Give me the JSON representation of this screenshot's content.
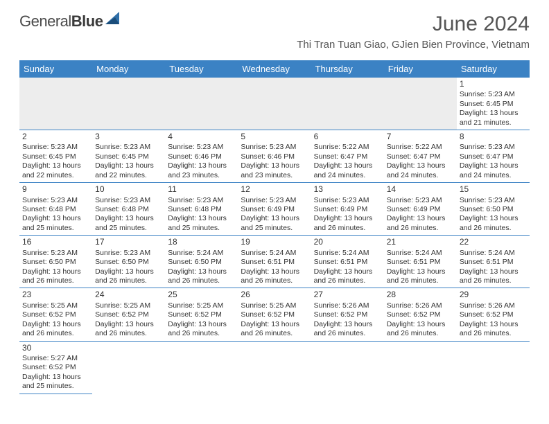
{
  "logo": {
    "word1": "General",
    "word2": "Blue"
  },
  "title": "June 2024",
  "location": "Thi Tran Tuan Giao, GJien Bien Province, Vietnam",
  "dayNames": [
    "Sunday",
    "Monday",
    "Tuesday",
    "Wednesday",
    "Thursday",
    "Friday",
    "Saturday"
  ],
  "colors": {
    "header_bg": "#3b82c4",
    "header_text": "#ffffff",
    "cell_border": "#3b82c4",
    "empty_bg": "#ededed",
    "title_color": "#555555",
    "body_text": "#333333"
  },
  "weeks": [
    [
      {
        "empty": true
      },
      {
        "empty": true
      },
      {
        "empty": true
      },
      {
        "empty": true
      },
      {
        "empty": true
      },
      {
        "empty": true
      },
      {
        "day": "1",
        "sunrise": "Sunrise: 5:23 AM",
        "sunset": "Sunset: 6:45 PM",
        "daylight1": "Daylight: 13 hours",
        "daylight2": "and 21 minutes."
      }
    ],
    [
      {
        "day": "2",
        "sunrise": "Sunrise: 5:23 AM",
        "sunset": "Sunset: 6:45 PM",
        "daylight1": "Daylight: 13 hours",
        "daylight2": "and 22 minutes."
      },
      {
        "day": "3",
        "sunrise": "Sunrise: 5:23 AM",
        "sunset": "Sunset: 6:45 PM",
        "daylight1": "Daylight: 13 hours",
        "daylight2": "and 22 minutes."
      },
      {
        "day": "4",
        "sunrise": "Sunrise: 5:23 AM",
        "sunset": "Sunset: 6:46 PM",
        "daylight1": "Daylight: 13 hours",
        "daylight2": "and 23 minutes."
      },
      {
        "day": "5",
        "sunrise": "Sunrise: 5:23 AM",
        "sunset": "Sunset: 6:46 PM",
        "daylight1": "Daylight: 13 hours",
        "daylight2": "and 23 minutes."
      },
      {
        "day": "6",
        "sunrise": "Sunrise: 5:22 AM",
        "sunset": "Sunset: 6:47 PM",
        "daylight1": "Daylight: 13 hours",
        "daylight2": "and 24 minutes."
      },
      {
        "day": "7",
        "sunrise": "Sunrise: 5:22 AM",
        "sunset": "Sunset: 6:47 PM",
        "daylight1": "Daylight: 13 hours",
        "daylight2": "and 24 minutes."
      },
      {
        "day": "8",
        "sunrise": "Sunrise: 5:23 AM",
        "sunset": "Sunset: 6:47 PM",
        "daylight1": "Daylight: 13 hours",
        "daylight2": "and 24 minutes."
      }
    ],
    [
      {
        "day": "9",
        "sunrise": "Sunrise: 5:23 AM",
        "sunset": "Sunset: 6:48 PM",
        "daylight1": "Daylight: 13 hours",
        "daylight2": "and 25 minutes."
      },
      {
        "day": "10",
        "sunrise": "Sunrise: 5:23 AM",
        "sunset": "Sunset: 6:48 PM",
        "daylight1": "Daylight: 13 hours",
        "daylight2": "and 25 minutes."
      },
      {
        "day": "11",
        "sunrise": "Sunrise: 5:23 AM",
        "sunset": "Sunset: 6:48 PM",
        "daylight1": "Daylight: 13 hours",
        "daylight2": "and 25 minutes."
      },
      {
        "day": "12",
        "sunrise": "Sunrise: 5:23 AM",
        "sunset": "Sunset: 6:49 PM",
        "daylight1": "Daylight: 13 hours",
        "daylight2": "and 25 minutes."
      },
      {
        "day": "13",
        "sunrise": "Sunrise: 5:23 AM",
        "sunset": "Sunset: 6:49 PM",
        "daylight1": "Daylight: 13 hours",
        "daylight2": "and 26 minutes."
      },
      {
        "day": "14",
        "sunrise": "Sunrise: 5:23 AM",
        "sunset": "Sunset: 6:49 PM",
        "daylight1": "Daylight: 13 hours",
        "daylight2": "and 26 minutes."
      },
      {
        "day": "15",
        "sunrise": "Sunrise: 5:23 AM",
        "sunset": "Sunset: 6:50 PM",
        "daylight1": "Daylight: 13 hours",
        "daylight2": "and 26 minutes."
      }
    ],
    [
      {
        "day": "16",
        "sunrise": "Sunrise: 5:23 AM",
        "sunset": "Sunset: 6:50 PM",
        "daylight1": "Daylight: 13 hours",
        "daylight2": "and 26 minutes."
      },
      {
        "day": "17",
        "sunrise": "Sunrise: 5:23 AM",
        "sunset": "Sunset: 6:50 PM",
        "daylight1": "Daylight: 13 hours",
        "daylight2": "and 26 minutes."
      },
      {
        "day": "18",
        "sunrise": "Sunrise: 5:24 AM",
        "sunset": "Sunset: 6:50 PM",
        "daylight1": "Daylight: 13 hours",
        "daylight2": "and 26 minutes."
      },
      {
        "day": "19",
        "sunrise": "Sunrise: 5:24 AM",
        "sunset": "Sunset: 6:51 PM",
        "daylight1": "Daylight: 13 hours",
        "daylight2": "and 26 minutes."
      },
      {
        "day": "20",
        "sunrise": "Sunrise: 5:24 AM",
        "sunset": "Sunset: 6:51 PM",
        "daylight1": "Daylight: 13 hours",
        "daylight2": "and 26 minutes."
      },
      {
        "day": "21",
        "sunrise": "Sunrise: 5:24 AM",
        "sunset": "Sunset: 6:51 PM",
        "daylight1": "Daylight: 13 hours",
        "daylight2": "and 26 minutes."
      },
      {
        "day": "22",
        "sunrise": "Sunrise: 5:24 AM",
        "sunset": "Sunset: 6:51 PM",
        "daylight1": "Daylight: 13 hours",
        "daylight2": "and 26 minutes."
      }
    ],
    [
      {
        "day": "23",
        "sunrise": "Sunrise: 5:25 AM",
        "sunset": "Sunset: 6:52 PM",
        "daylight1": "Daylight: 13 hours",
        "daylight2": "and 26 minutes."
      },
      {
        "day": "24",
        "sunrise": "Sunrise: 5:25 AM",
        "sunset": "Sunset: 6:52 PM",
        "daylight1": "Daylight: 13 hours",
        "daylight2": "and 26 minutes."
      },
      {
        "day": "25",
        "sunrise": "Sunrise: 5:25 AM",
        "sunset": "Sunset: 6:52 PM",
        "daylight1": "Daylight: 13 hours",
        "daylight2": "and 26 minutes."
      },
      {
        "day": "26",
        "sunrise": "Sunrise: 5:25 AM",
        "sunset": "Sunset: 6:52 PM",
        "daylight1": "Daylight: 13 hours",
        "daylight2": "and 26 minutes."
      },
      {
        "day": "27",
        "sunrise": "Sunrise: 5:26 AM",
        "sunset": "Sunset: 6:52 PM",
        "daylight1": "Daylight: 13 hours",
        "daylight2": "and 26 minutes."
      },
      {
        "day": "28",
        "sunrise": "Sunrise: 5:26 AM",
        "sunset": "Sunset: 6:52 PM",
        "daylight1": "Daylight: 13 hours",
        "daylight2": "and 26 minutes."
      },
      {
        "day": "29",
        "sunrise": "Sunrise: 5:26 AM",
        "sunset": "Sunset: 6:52 PM",
        "daylight1": "Daylight: 13 hours",
        "daylight2": "and 26 minutes."
      }
    ],
    [
      {
        "day": "30",
        "sunrise": "Sunrise: 5:27 AM",
        "sunset": "Sunset: 6:52 PM",
        "daylight1": "Daylight: 13 hours",
        "daylight2": "and 25 minutes."
      },
      {
        "blank": true
      },
      {
        "blank": true
      },
      {
        "blank": true
      },
      {
        "blank": true
      },
      {
        "blank": true
      },
      {
        "blank": true
      }
    ]
  ]
}
